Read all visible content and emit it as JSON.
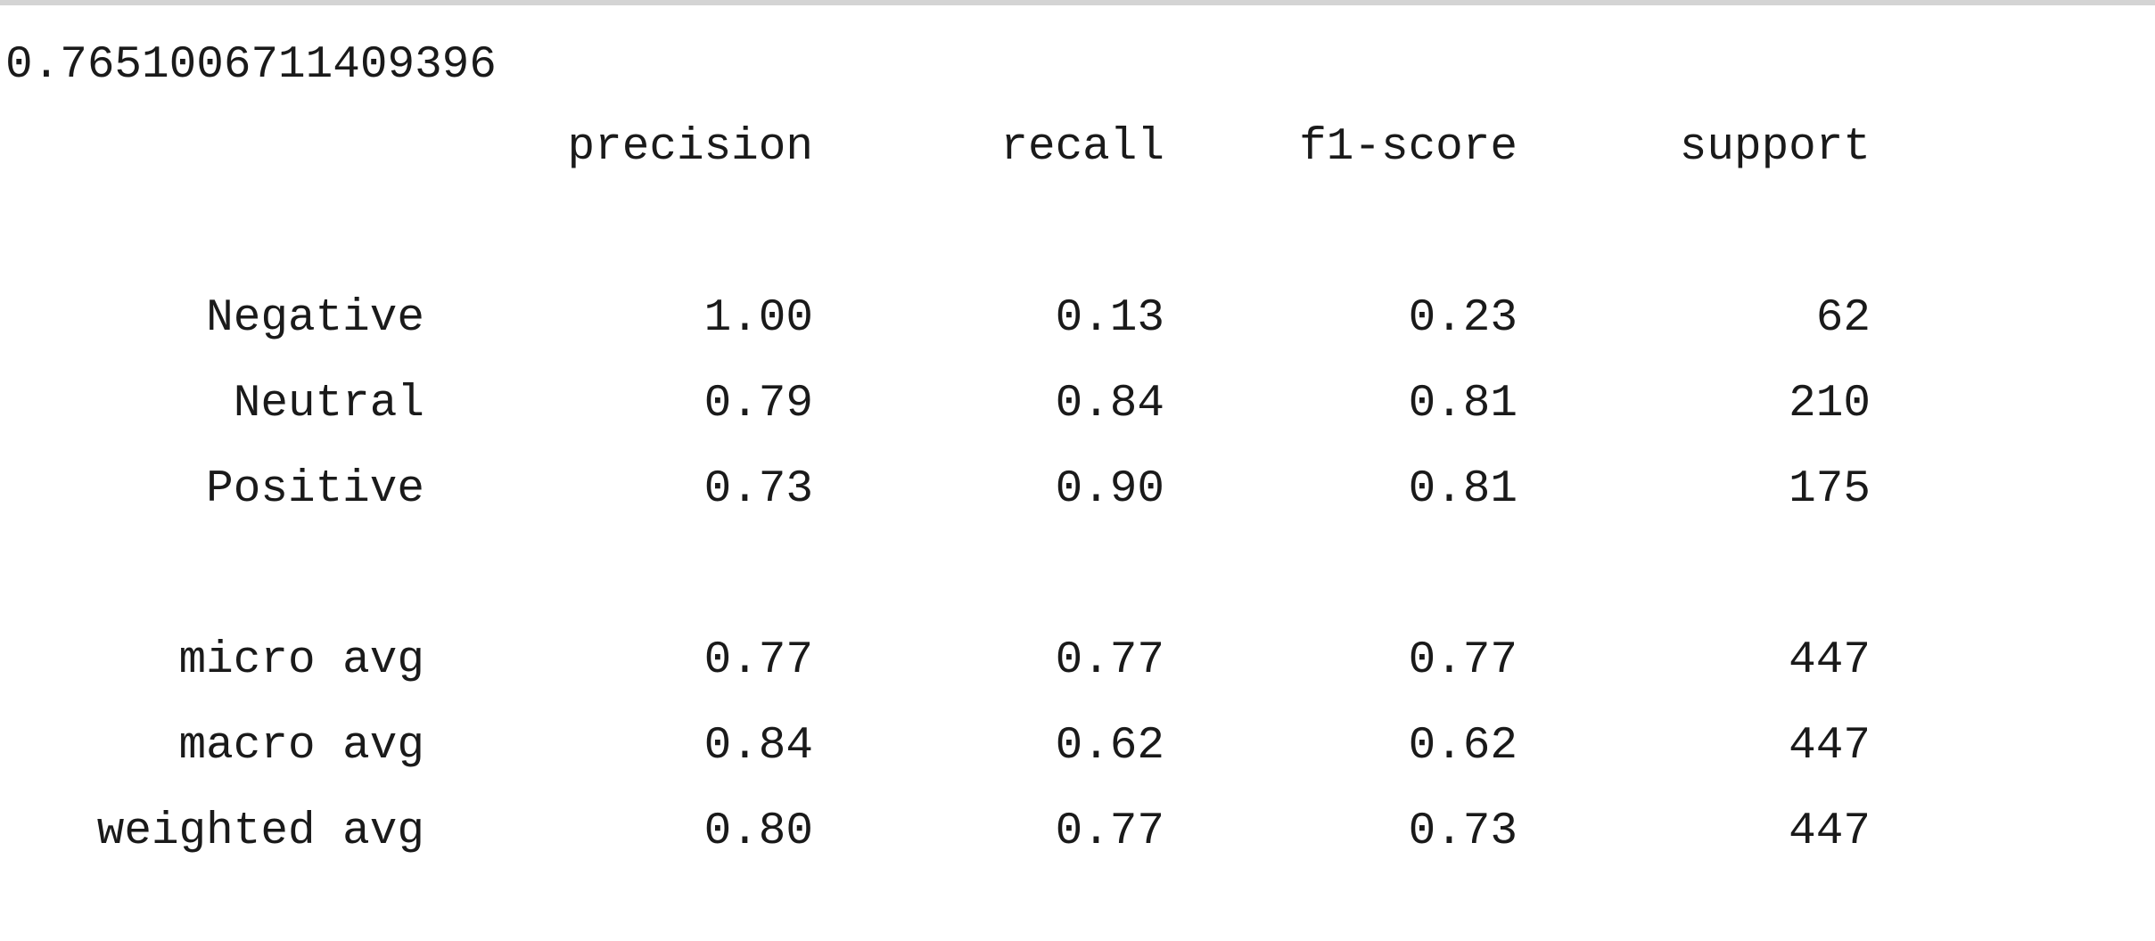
{
  "accuracy": "0.7651006711409396",
  "header": {
    "precision": "precision",
    "recall": "recall",
    "f1_score": "f1-score",
    "support": "support"
  },
  "rows": [
    {
      "label": "Negative",
      "precision": "1.00",
      "recall": "0.13",
      "f1_score": "0.23",
      "support": "62"
    },
    {
      "label": "Neutral",
      "precision": "0.79",
      "recall": "0.84",
      "f1_score": "0.81",
      "support": "210"
    },
    {
      "label": "Positive",
      "precision": "0.73",
      "recall": "0.90",
      "f1_score": "0.81",
      "support": "175"
    }
  ],
  "averages": [
    {
      "label": "micro avg",
      "precision": "0.77",
      "recall": "0.77",
      "f1_score": "0.77",
      "support": "447"
    },
    {
      "label": "macro avg",
      "precision": "0.84",
      "recall": "0.62",
      "f1_score": "0.62",
      "support": "447"
    },
    {
      "label": "weighted avg",
      "precision": "0.80",
      "recall": "0.77",
      "f1_score": "0.73",
      "support": "447"
    }
  ]
}
